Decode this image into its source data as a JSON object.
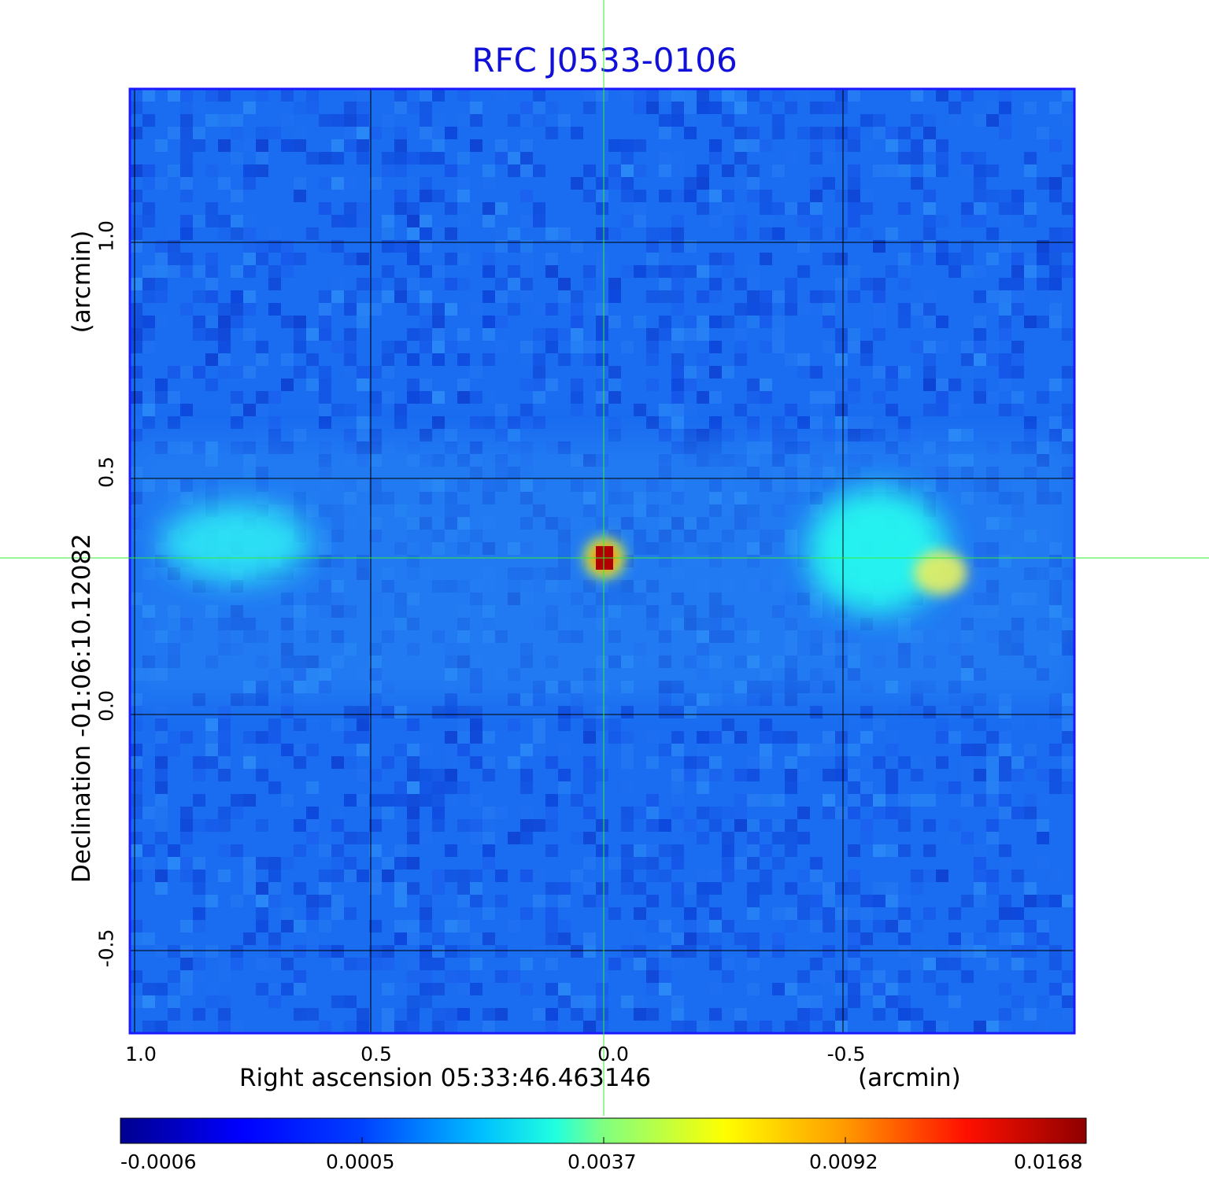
{
  "title": "RFC J0533-0106",
  "x_axis": {
    "label": "Right ascension  05:33:46.463146",
    "unit": "(arcmin)",
    "ticks": [
      "1.0",
      "0.5",
      "0.0",
      "-0.5"
    ]
  },
  "y_axis": {
    "label": "Declination  -01:06:10.12082",
    "unit": "(arcmin)",
    "ticks": [
      "1.0",
      "0.5",
      "0.0",
      "-0.5"
    ]
  },
  "colorbar": {
    "colormap": "jet",
    "ticks": [
      "-0.0006",
      "0.0005",
      "0.0037",
      "0.0092",
      "0.0168"
    ]
  },
  "colors": {
    "title": "#1010d8",
    "frame": "#1a1aff",
    "grid": "#000000",
    "crosshair": "#33ee33"
  },
  "image_description": "Radio map with noisy blue background, bright compact core at center, diffuse lobes to left and right"
}
